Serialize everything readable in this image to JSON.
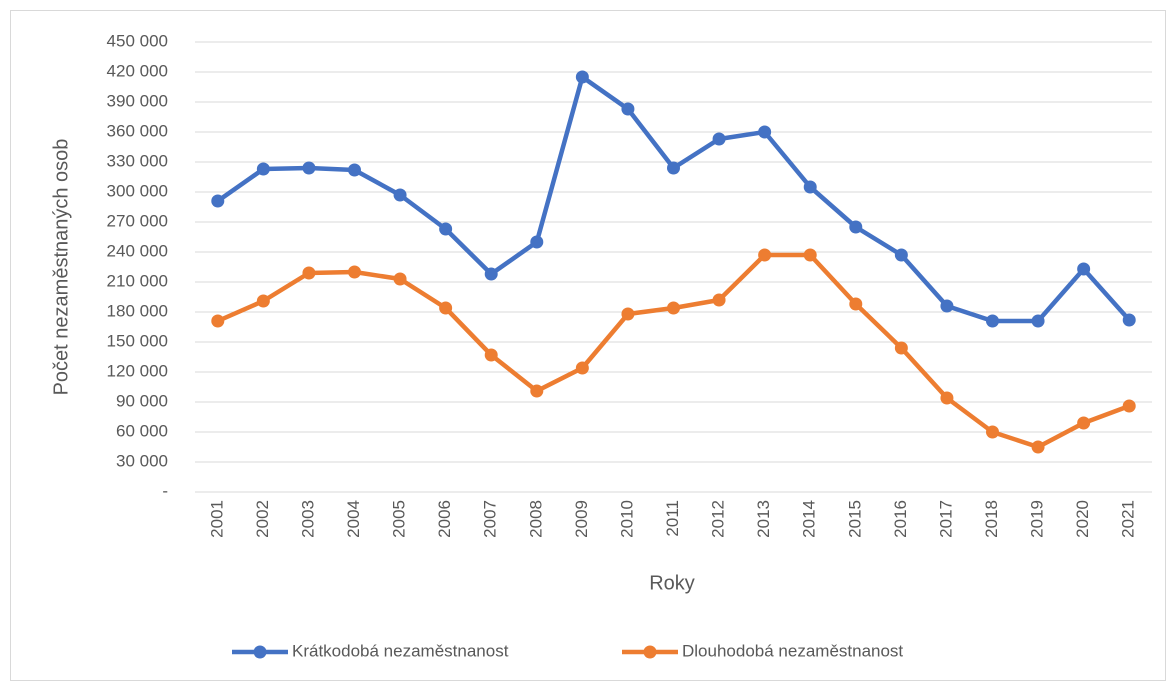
{
  "chart_data": {
    "type": "line",
    "y_label": "Počet nezaměstnaných osob",
    "x_label": "Roky",
    "categories": [
      "2001",
      "2002",
      "2003",
      "2004",
      "2005",
      "2006",
      "2007",
      "2008",
      "2009",
      "2010",
      "2011",
      "2012",
      "2013",
      "2014",
      "2015",
      "2016",
      "2017",
      "2018",
      "2019",
      "2020",
      "2021"
    ],
    "series": [
      {
        "name": "Krátkodobá nezaměstnanost",
        "color": "#4472c4",
        "values": [
          291000,
          323000,
          324000,
          322000,
          297000,
          263000,
          218000,
          250000,
          415000,
          383000,
          324000,
          353000,
          360000,
          305000,
          265000,
          237000,
          186000,
          171000,
          171000,
          223000,
          172000
        ]
      },
      {
        "name": "Dlouhodobá nezaměstnanost",
        "color": "#ed7d31",
        "values": [
          171000,
          191000,
          219000,
          220000,
          213000,
          184000,
          137000,
          101000,
          124000,
          178000,
          184000,
          192000,
          237000,
          237000,
          188000,
          144000,
          94000,
          60000,
          45000,
          69000,
          86000
        ]
      }
    ],
    "ylim": [
      0,
      450000
    ],
    "yticks": [
      {
        "value": 0,
        "label": "-"
      },
      {
        "value": 30000,
        "label": "30 000"
      },
      {
        "value": 60000,
        "label": "60 000"
      },
      {
        "value": 90000,
        "label": "90 000"
      },
      {
        "value": 120000,
        "label": "120 000"
      },
      {
        "value": 150000,
        "label": "150 000"
      },
      {
        "value": 180000,
        "label": "180 000"
      },
      {
        "value": 210000,
        "label": "210 000"
      },
      {
        "value": 240000,
        "label": "240 000"
      },
      {
        "value": 270000,
        "label": "270 000"
      },
      {
        "value": 300000,
        "label": "300 000"
      },
      {
        "value": 330000,
        "label": "330 000"
      },
      {
        "value": 360000,
        "label": "360 000"
      },
      {
        "value": 390000,
        "label": "390 000"
      },
      {
        "value": 420000,
        "label": "420 000"
      },
      {
        "value": 450000,
        "label": "450 000"
      }
    ],
    "grid": true,
    "legend": "bottom"
  }
}
